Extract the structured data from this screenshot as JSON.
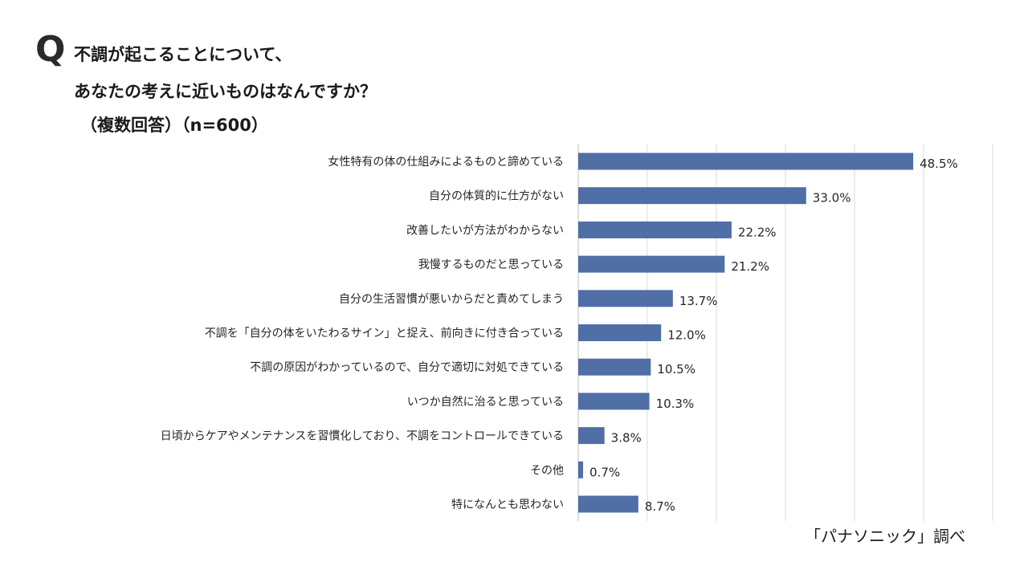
{
  "question": {
    "mark": "Q",
    "line1": "不調が起こることについて、",
    "line2": "あなたの考えに近いものはなんですか？",
    "line3": "（複数回答）（n=600）"
  },
  "source": "「パナソニック」調べ",
  "colors": {
    "bar": "#4f6fa6",
    "grid": "#d9d9d9",
    "axis": "#bfbfbf"
  },
  "chart_data": {
    "type": "bar",
    "orientation": "horizontal",
    "categories": [
      "女性特有の体の仕組みによるものと諦めている",
      "自分の体質的に仕方がない",
      "改善したいが方法がわからない",
      "我慢するものだと思っている",
      "自分の生活習慣が悪いからだと責めてしまう",
      "不調を「自分の体をいたわるサイン」と捉え、前向きに付き合っている",
      "不調の原因がわかっているので、自分で適切に対処できている",
      "いつか自然に治ると思っている",
      "日頃からケアやメンテナンスを習慣化しており、不調をコントロールできている",
      "その他",
      "特になんとも思わない"
    ],
    "values": [
      48.5,
      33.0,
      22.2,
      21.2,
      13.7,
      12.0,
      10.5,
      10.3,
      3.8,
      0.7,
      8.7
    ],
    "value_labels": [
      "48.5%",
      "33.0%",
      "22.2%",
      "21.2%",
      "13.7%",
      "12.0%",
      "10.5%",
      "10.3%",
      "3.8%",
      "0.7%",
      "8.7%"
    ],
    "xlim": [
      0,
      60
    ],
    "grid": true,
    "legend": "none"
  }
}
